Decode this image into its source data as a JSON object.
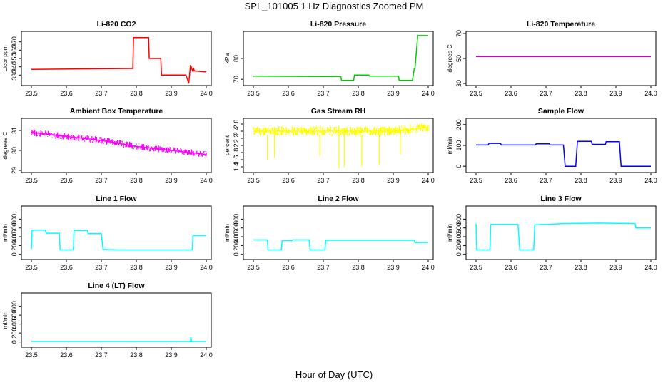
{
  "page": {
    "title": "SPL_101005  1 Hz Diagnostics Zoomed PM",
    "xlabel": "Hour of Day (UTC)"
  },
  "chart_data": [
    {
      "id": "co2",
      "type": "line",
      "title": "Li-820 CO2",
      "ylabel": "Licor ppm",
      "color": "#ff0000",
      "xlim": [
        23.5,
        24.0
      ],
      "ylim": [
        320,
        380
      ],
      "xticks": [
        "23.5",
        "23.6",
        "23.7",
        "23.8",
        "23.9",
        "24.0"
      ],
      "yticks": [
        330,
        340,
        350,
        360,
        370
      ],
      "x": [
        23.5,
        23.79,
        23.792,
        23.835,
        23.837,
        23.87,
        23.872,
        23.94,
        23.942,
        23.95,
        23.955,
        23.962,
        23.963,
        23.966,
        24.0
      ],
      "y": [
        337,
        338,
        375,
        375,
        350,
        350,
        330,
        330,
        330,
        320,
        342,
        334,
        339,
        335,
        334
      ]
    },
    {
      "id": "pressure",
      "type": "line",
      "title": "Li-820 Pressure",
      "ylabel": "kPa",
      "color": "#00cc00",
      "xlim": [
        23.5,
        24.0
      ],
      "ylim": [
        68,
        92
      ],
      "xticks": [
        "23.5",
        "23.6",
        "23.7",
        "23.8",
        "23.9",
        "24.0"
      ],
      "yticks": [
        70,
        80
      ],
      "x": [
        23.5,
        23.75,
        23.752,
        23.787,
        23.789,
        23.83,
        23.832,
        23.915,
        23.917,
        23.955,
        23.96,
        23.962,
        23.97,
        23.972,
        24.0
      ],
      "y": [
        71.5,
        71.3,
        69.5,
        69.5,
        72,
        72,
        71.5,
        71.5,
        69.5,
        69.5,
        75,
        75,
        91,
        91,
        91
      ]
    },
    {
      "id": "temp",
      "type": "line",
      "title": "Li-820 Temperature",
      "ylabel": "degrees C",
      "color": "#cc00cc",
      "xlim": [
        23.5,
        24.0
      ],
      "ylim": [
        30,
        70
      ],
      "xticks": [
        "23.5",
        "23.6",
        "23.7",
        "23.8",
        "23.9",
        "24.0"
      ],
      "yticks": [
        30,
        50,
        70
      ],
      "x": [
        23.5,
        24.0
      ],
      "y": [
        51.5,
        51.5
      ]
    },
    {
      "id": "ambient",
      "type": "line",
      "title": "Ambient Box Temperature",
      "ylabel": "degrees C",
      "color": "#ff00ff",
      "xlim": [
        23.5,
        24.0
      ],
      "ylim": [
        29.0,
        31.5
      ],
      "xticks": [
        "23.5",
        "23.6",
        "23.7",
        "23.8",
        "23.9",
        "24.0"
      ],
      "yticks": [
        29.0,
        30.0,
        31.0
      ],
      "x": [
        23.5,
        23.6,
        23.7,
        23.8,
        23.9,
        24.0
      ],
      "y": [
        30.9,
        30.7,
        30.5,
        30.2,
        30.0,
        29.8
      ]
    },
    {
      "id": "rh",
      "type": "line",
      "title": "Gas Stream RH",
      "ylabel": "percent",
      "color": "#ffff00",
      "xlim": [
        23.5,
        24.0
      ],
      "ylim": [
        1.3,
        2.7
      ],
      "xticks": [
        "23.5",
        "23.6",
        "23.7",
        "23.8",
        "23.9",
        "24.0"
      ],
      "yticks": [
        1.4,
        1.6,
        1.8,
        2.0,
        2.2,
        2.4,
        2.6
      ],
      "x": [
        23.5,
        23.6,
        23.7,
        23.75,
        23.8,
        23.85,
        23.9,
        24.0
      ],
      "y": [
        2.4,
        2.4,
        2.4,
        2.4,
        2.4,
        2.4,
        2.4,
        2.5
      ]
    },
    {
      "id": "sampleflow",
      "type": "line",
      "title": "Sample Flow",
      "ylabel": "ml/min",
      "color": "#0000ff",
      "xlim": [
        23.5,
        24.0
      ],
      "ylim": [
        -20,
        220
      ],
      "xticks": [
        "23.5",
        "23.6",
        "23.7",
        "23.8",
        "23.9",
        "24.0"
      ],
      "yticks": [
        0,
        100,
        200
      ],
      "x": [
        23.5,
        23.535,
        23.537,
        23.57,
        23.572,
        23.67,
        23.672,
        23.71,
        23.712,
        23.75,
        23.755,
        23.785,
        23.79,
        23.83,
        23.832,
        23.87,
        23.872,
        23.91,
        23.915,
        24.0
      ],
      "y": [
        102,
        102,
        110,
        110,
        102,
        102,
        108,
        108,
        102,
        102,
        0,
        0,
        120,
        120,
        105,
        105,
        118,
        118,
        0,
        0
      ]
    },
    {
      "id": "line1",
      "type": "line",
      "title": "Line 1 Flow",
      "ylabel": "ml/min",
      "color": "#00ffff",
      "xlim": [
        23.5,
        24.0
      ],
      "ylim": [
        -70,
        1050
      ],
      "xticks": [
        "23.5",
        "23.6",
        "23.7",
        "23.8",
        "23.9",
        "24.0"
      ],
      "yticks": [
        0,
        200,
        400,
        600,
        800
      ],
      "x": [
        23.5,
        23.502,
        23.54,
        23.542,
        23.58,
        23.582,
        23.62,
        23.622,
        23.66,
        23.662,
        23.7,
        23.705,
        23.75,
        23.96,
        23.962,
        24.0
      ],
      "y": [
        120,
        550,
        550,
        480,
        480,
        100,
        100,
        540,
        540,
        470,
        470,
        110,
        100,
        100,
        430,
        430
      ]
    },
    {
      "id": "line2",
      "type": "line",
      "title": "Line 2 Flow",
      "ylabel": "ml/min",
      "color": "#00ffff",
      "xlim": [
        23.5,
        24.0
      ],
      "ylim": [
        -70,
        1050
      ],
      "xticks": [
        "23.5",
        "23.6",
        "23.7",
        "23.8",
        "23.9",
        "24.0"
      ],
      "yticks": [
        0,
        200,
        400,
        600,
        800
      ],
      "x": [
        23.5,
        23.54,
        23.542,
        23.58,
        23.582,
        23.61,
        23.612,
        23.66,
        23.662,
        23.705,
        23.707,
        23.96,
        23.962,
        24.0
      ],
      "y": [
        330,
        330,
        100,
        100,
        310,
        310,
        330,
        330,
        100,
        100,
        320,
        320,
        270,
        270
      ]
    },
    {
      "id": "line3",
      "type": "line",
      "title": "Line 3 Flow",
      "ylabel": "ml/min",
      "color": "#00ffff",
      "xlim": [
        23.5,
        24.0
      ],
      "ylim": [
        -70,
        1050
      ],
      "xticks": [
        "23.5",
        "23.6",
        "23.7",
        "23.8",
        "23.9",
        "24.0"
      ],
      "yticks": [
        0,
        200,
        400,
        600,
        800
      ],
      "x": [
        23.5,
        23.502,
        23.505,
        23.54,
        23.542,
        23.62,
        23.625,
        23.665,
        23.668,
        23.75,
        23.85,
        23.955,
        23.957,
        24.0
      ],
      "y": [
        700,
        100,
        100,
        100,
        680,
        680,
        100,
        100,
        670,
        700,
        710,
        700,
        600,
        600
      ]
    },
    {
      "id": "line4",
      "type": "line",
      "title": "Line 4 (LT) Flow",
      "ylabel": "ml/min",
      "color": "#00ffff",
      "xlim": [
        23.5,
        24.0
      ],
      "ylim": [
        -70,
        1050
      ],
      "xticks": [
        "23.5",
        "23.6",
        "23.7",
        "23.8",
        "23.9",
        "24.0"
      ],
      "yticks": [
        0,
        200,
        400,
        600,
        800
      ],
      "x": [
        23.5,
        23.955,
        23.956,
        23.958,
        24.0
      ],
      "y": [
        10,
        10,
        120,
        10,
        10
      ]
    }
  ]
}
